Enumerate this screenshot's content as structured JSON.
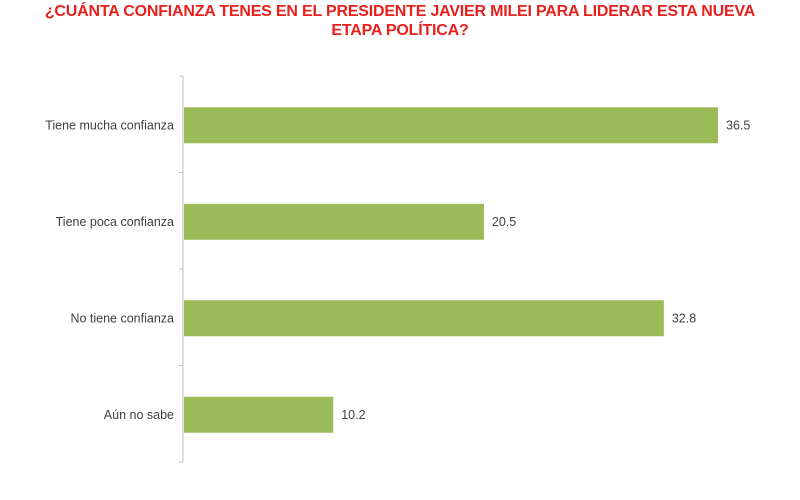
{
  "chart_data": {
    "type": "bar",
    "orientation": "horizontal",
    "title": "¿CUÁNTA CONFIANZA TENES EN EL PRESIDENTE JAVIER MILEI PARA LIDERAR ESTA NUEVA ETAPA POLÍTICA?",
    "categories": [
      "Tiene mucha confianza",
      "Tiene poca confianza",
      "No tiene confianza",
      "Aún no sabe"
    ],
    "values": [
      36.5,
      20.5,
      32.8,
      10.2
    ],
    "value_labels": [
      "36.5",
      "20.5",
      "32.8",
      "10.2"
    ],
    "xlim": [
      0,
      40
    ],
    "grid": false,
    "legend": "none",
    "colors": {
      "bar": "#9bbb59",
      "title": "#e8201e",
      "axis": "#bfbfbf",
      "text": "#404040"
    }
  }
}
